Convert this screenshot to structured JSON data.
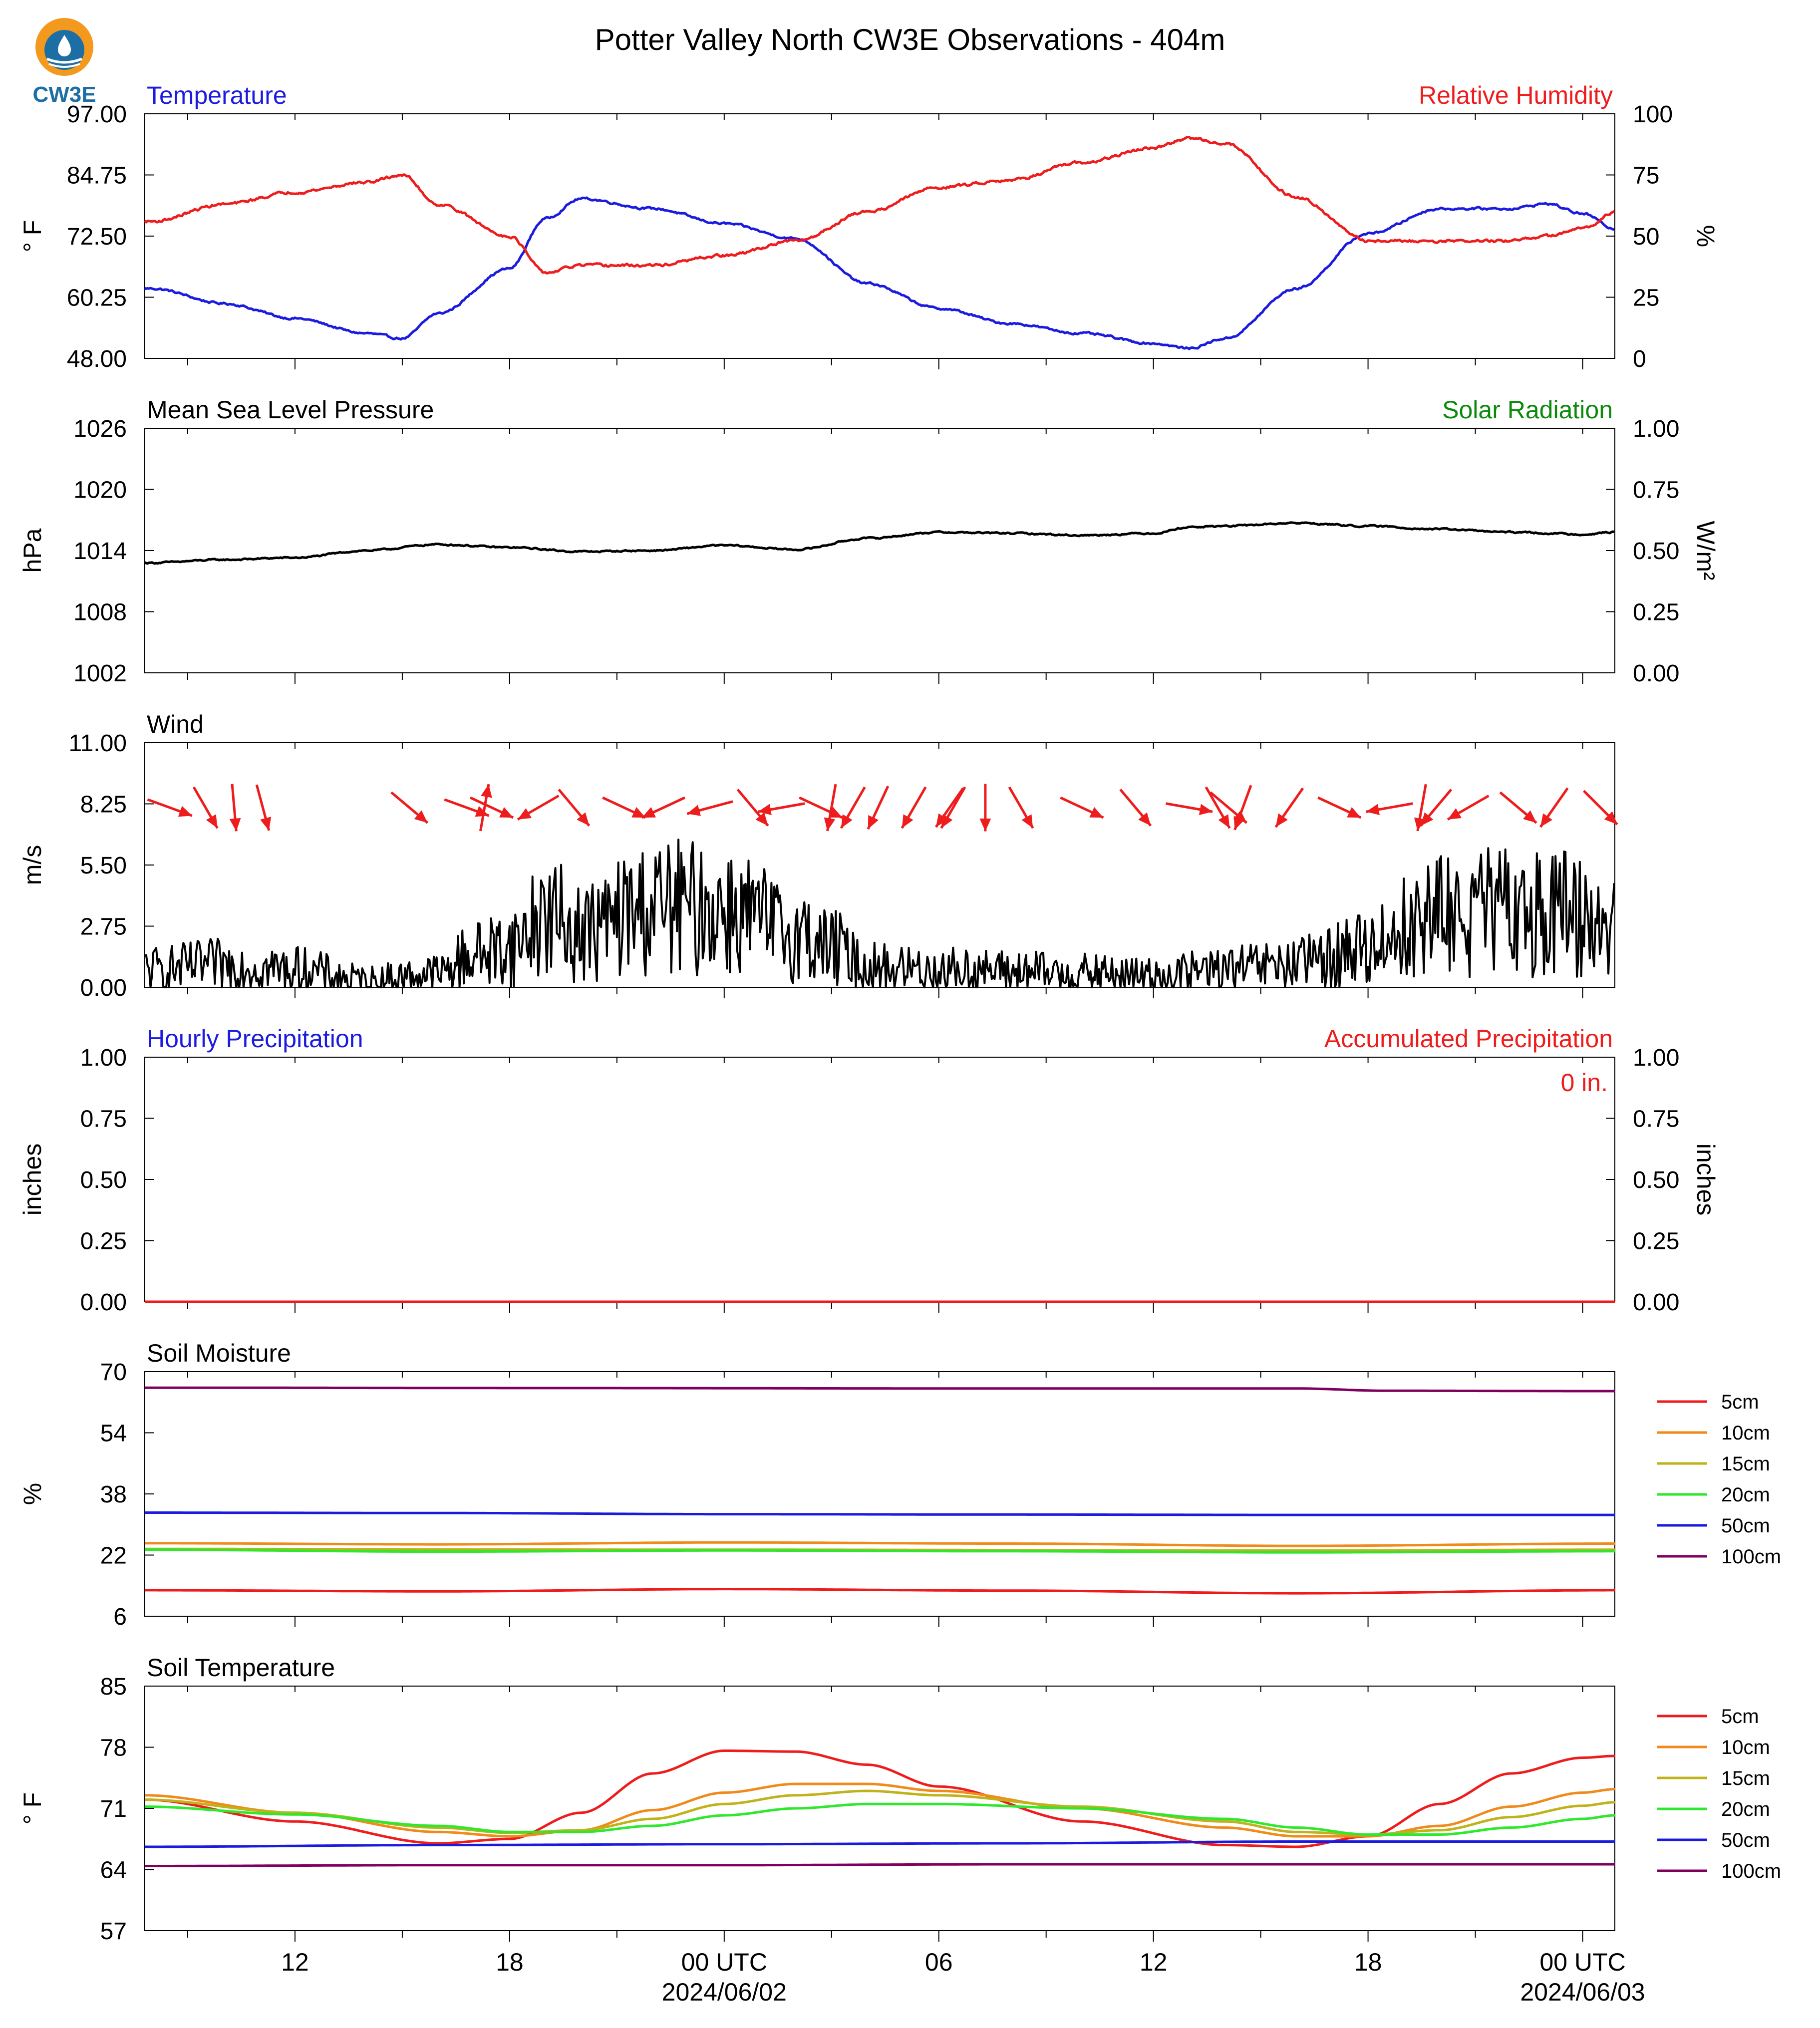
{
  "title": "Potter Valley North CW3E Observations - 404m",
  "logo": {
    "text": "CW3E"
  },
  "colors": {
    "red": "#ee1c1c",
    "blue": "#1b1be0",
    "green": "#0c8a0c",
    "black": "#000000",
    "soil_5cm": "#ee1c1c",
    "soil_10cm": "#f08a1a",
    "soil_15cm": "#bfb21a",
    "soil_20cm": "#2ee82e",
    "soil_50cm": "#1b1be0",
    "soil_100cm": "#800060"
  },
  "x_axis": {
    "ticks": [
      "12",
      "18",
      "00 UTC",
      "06",
      "12",
      "18",
      "00 UTC"
    ],
    "tick_hours": [
      12,
      18,
      24,
      30,
      36,
      42,
      48
    ],
    "date_labels": [
      "2024/06/02",
      "2024/06/03"
    ],
    "date_hours": [
      24,
      48
    ],
    "range_hours": [
      7.8,
      48.9
    ]
  },
  "chart_data": [
    {
      "type": "line",
      "panel": "temperature-humidity",
      "left_title": "Temperature",
      "right_title": "Relative Humidity",
      "ylabel": "° F",
      "ylabel2": "%",
      "ylim": [
        48,
        97
      ],
      "ylim2": [
        0,
        100
      ],
      "yticks": [
        "97.00",
        "84.75",
        "72.50",
        "60.25",
        "48.00"
      ],
      "yticks2": [
        "100",
        "75",
        "50",
        "25",
        "0"
      ],
      "series": [
        {
          "axis": "left",
          "color": "blue",
          "x": [
            8,
            10,
            12,
            14,
            15,
            16,
            18,
            19,
            20,
            22,
            24,
            26,
            28,
            30,
            32,
            34,
            36,
            37,
            38,
            40,
            42,
            44,
            46,
            47,
            48,
            48.9
          ],
          "values": [
            62,
            59,
            56,
            53,
            52,
            57,
            66,
            76,
            80,
            78,
            75,
            72,
            63,
            58,
            55,
            53,
            51,
            50,
            52,
            62,
            73,
            78,
            78,
            79,
            77,
            74
          ]
        },
        {
          "axis": "right",
          "color": "red",
          "x": [
            8,
            10,
            12,
            14,
            15,
            16,
            18,
            19,
            20,
            22,
            24,
            26,
            28,
            30,
            32,
            34,
            36,
            37,
            38,
            40,
            42,
            44,
            46,
            47,
            48,
            48.9
          ],
          "values": [
            56,
            63,
            68,
            72,
            75,
            63,
            50,
            35,
            38,
            38,
            42,
            48,
            60,
            70,
            73,
            80,
            86,
            90,
            88,
            66,
            48,
            48,
            48,
            50,
            53,
            60
          ]
        }
      ]
    },
    {
      "type": "line",
      "panel": "pressure-solar",
      "left_title": "Mean Sea Level Pressure",
      "right_title": "Solar Radiation",
      "ylabel": "hPa",
      "ylabel2": "W/m²",
      "ylim": [
        1002,
        1026
      ],
      "ylim2": [
        0,
        1
      ],
      "yticks": [
        "1026",
        "1020",
        "1014",
        "1008",
        "1002"
      ],
      "yticks2": [
        "1.00",
        "0.75",
        "0.50",
        "0.25",
        "0.00"
      ],
      "series": [
        {
          "axis": "left",
          "color": "black",
          "x": [
            8,
            10,
            12,
            14,
            16,
            18,
            20,
            22,
            24,
            26,
            28,
            30,
            32,
            34,
            36,
            37,
            38,
            40,
            42,
            44,
            46,
            48,
            48.9
          ],
          "values": [
            1012.8,
            1013.1,
            1013.3,
            1014.0,
            1014.6,
            1014.3,
            1013.9,
            1014.0,
            1014.5,
            1014.1,
            1015.2,
            1015.8,
            1015.7,
            1015.5,
            1015.7,
            1016.3,
            1016.4,
            1016.7,
            1016.4,
            1016.1,
            1015.8,
            1015.6,
            1015.8
          ]
        }
      ]
    },
    {
      "type": "line",
      "panel": "wind",
      "left_title": "Wind",
      "ylabel": "m/s",
      "ylim": [
        0,
        11
      ],
      "yticks": [
        "11.00",
        "8.25",
        "5.50",
        "2.75",
        "0.00"
      ],
      "series": [
        {
          "color": "black",
          "x": [
            8,
            10,
            12,
            14,
            16,
            17,
            18,
            19,
            20,
            22,
            24,
            26,
            27,
            28,
            30,
            32,
            34,
            36,
            38,
            40,
            41,
            42,
            43,
            44,
            46,
            48,
            48.9
          ],
          "values": [
            0.8,
            1.0,
            0.8,
            0.3,
            0.6,
            1.5,
            1.8,
            3.2,
            2.5,
            3.6,
            3.5,
            2.4,
            1.8,
            0.9,
            0.8,
            0.7,
            0.6,
            0.5,
            0.8,
            1.0,
            1.4,
            1.8,
            2.6,
            3.3,
            3.4,
            3.3,
            2.8
          ]
        }
      ],
      "arrows": {
        "color": "red",
        "hours": [
          8.5,
          9.5,
          10.3,
          11.1,
          15.2,
          16.8,
          17.3,
          17.5,
          18.8,
          19.8,
          21.2,
          22.3,
          23.6,
          24.8,
          25.6,
          26.7,
          27.0,
          27.6,
          28.3,
          29.3,
          30.3,
          30.4,
          31.3,
          32.3,
          34.0,
          35.5,
          37.0,
          37.8,
          38.1,
          38.5,
          39.8,
          41.2,
          42.6,
          43.5,
          43.9,
          44.8,
          46.2,
          47.2,
          48.5
        ],
        "directions_deg": [
          110,
          150,
          175,
          165,
          130,
          110,
          10,
          115,
          240,
          140,
          115,
          245,
          255,
          140,
          260,
          115,
          190,
          210,
          205,
          210,
          215,
          210,
          180,
          150,
          115,
          140,
          100,
          150,
          130,
          200,
          215,
          115,
          260,
          190,
          220,
          240,
          130,
          215,
          135
        ]
      }
    },
    {
      "type": "line",
      "panel": "precipitation",
      "left_title": "Hourly Precipitation",
      "right_title": "Accumulated Precipitation",
      "ylabel": "inches",
      "ylabel2": "inches",
      "annotation": "0 in.",
      "ylim": [
        0,
        1
      ],
      "ylim2": [
        0,
        1
      ],
      "yticks": [
        "1.00",
        "0.75",
        "0.50",
        "0.25",
        "0.00"
      ],
      "yticks2": [
        "1.00",
        "0.75",
        "0.50",
        "0.25",
        "0.00"
      ],
      "series": [
        {
          "axis": "left",
          "color": "blue",
          "x": [
            7.8,
            48.9
          ],
          "values": [
            0,
            0
          ]
        },
        {
          "axis": "right",
          "color": "red",
          "x": [
            7.8,
            48.9
          ],
          "values": [
            0,
            0
          ]
        }
      ]
    },
    {
      "type": "line",
      "panel": "soil-moisture",
      "left_title": "Soil Moisture",
      "ylabel": "%",
      "ylim": [
        6,
        70
      ],
      "yticks": [
        "70",
        "54",
        "38",
        "22",
        "6"
      ],
      "series": [
        {
          "name": "5cm",
          "color": "soil_5cm",
          "x": [
            7.8,
            16,
            24,
            32,
            40,
            48.9
          ],
          "values": [
            12.8,
            12.5,
            13.1,
            12.7,
            12.0,
            12.8
          ]
        },
        {
          "name": "10cm",
          "color": "soil_10cm",
          "x": [
            7.8,
            16,
            24,
            32,
            40,
            48.9
          ],
          "values": [
            25.1,
            24.8,
            25.3,
            25.0,
            24.4,
            25.0
          ]
        },
        {
          "name": "15cm",
          "color": "soil_15cm",
          "x": [
            7.8,
            24,
            40,
            48.9
          ],
          "values": [
            23.6,
            23.4,
            23.2,
            23.4
          ]
        },
        {
          "name": "20cm",
          "color": "soil_20cm",
          "x": [
            7.8,
            16,
            24,
            32,
            40,
            48.9
          ],
          "values": [
            23.4,
            22.9,
            23.2,
            23.0,
            22.7,
            23.0
          ]
        },
        {
          "name": "50cm",
          "color": "soil_50cm",
          "x": [
            7.8,
            16,
            24,
            32,
            40,
            48.9
          ],
          "values": [
            33.1,
            33.0,
            32.7,
            32.6,
            32.5,
            32.5
          ]
        },
        {
          "name": "100cm",
          "color": "soil_100cm",
          "x": [
            7.8,
            20,
            30,
            40,
            42.5,
            48.9
          ],
          "values": [
            65.8,
            65.7,
            65.6,
            65.6,
            65.0,
            64.9
          ]
        }
      ],
      "legend": [
        "5cm",
        "10cm",
        "15cm",
        "20cm",
        "50cm",
        "100cm"
      ]
    },
    {
      "type": "line",
      "panel": "soil-temperature",
      "left_title": "Soil Temperature",
      "ylabel": "° F",
      "ylim": [
        57,
        85
      ],
      "yticks": [
        "85",
        "78",
        "71",
        "64",
        "57"
      ],
      "series": [
        {
          "name": "5cm",
          "color": "soil_5cm",
          "x": [
            7.8,
            12,
            16,
            18,
            20,
            22,
            24,
            26,
            28,
            30,
            34,
            38,
            40,
            42,
            44,
            46,
            48,
            48.9
          ],
          "values": [
            72.0,
            69.5,
            67.0,
            67.5,
            70.5,
            75.0,
            77.6,
            77.5,
            76.0,
            73.5,
            69.5,
            66.8,
            66.6,
            67.8,
            71.5,
            75.0,
            76.8,
            77.0
          ]
        },
        {
          "name": "10cm",
          "color": "soil_10cm",
          "x": [
            7.8,
            12,
            16,
            18,
            20,
            22,
            24,
            26,
            28,
            30,
            34,
            38,
            40,
            42,
            44,
            46,
            48,
            48.9
          ],
          "values": [
            72.5,
            70.5,
            68.3,
            67.8,
            68.5,
            70.8,
            72.8,
            73.8,
            73.8,
            73.0,
            71.0,
            68.8,
            67.8,
            67.8,
            69.0,
            71.2,
            72.8,
            73.2
          ]
        },
        {
          "name": "15cm",
          "color": "soil_15cm",
          "x": [
            7.8,
            12,
            16,
            18,
            20,
            22,
            24,
            26,
            28,
            30,
            34,
            38,
            40,
            42,
            44,
            46,
            48,
            48.9
          ],
          "values": [
            72.0,
            70.5,
            68.8,
            68.2,
            68.5,
            69.8,
            71.5,
            72.5,
            73.0,
            72.5,
            71.2,
            69.5,
            68.3,
            68.0,
            68.5,
            70.0,
            71.3,
            71.7
          ]
        },
        {
          "name": "20cm",
          "color": "soil_20cm",
          "x": [
            7.8,
            12,
            16,
            18,
            20,
            22,
            24,
            26,
            28,
            30,
            34,
            38,
            40,
            42,
            44,
            46,
            48,
            48.9
          ],
          "values": [
            71.2,
            70.3,
            69.0,
            68.3,
            68.3,
            69.0,
            70.2,
            71.0,
            71.5,
            71.5,
            71.0,
            69.8,
            68.8,
            68.0,
            68.0,
            68.8,
            69.8,
            70.2
          ]
        },
        {
          "name": "50cm",
          "color": "soil_50cm",
          "x": [
            7.8,
            16,
            24,
            32,
            40,
            48.9
          ],
          "values": [
            66.6,
            66.8,
            66.9,
            67.0,
            67.2,
            67.2
          ]
        },
        {
          "name": "100cm",
          "color": "soil_100cm",
          "x": [
            7.8,
            16,
            24,
            32,
            40,
            48.9
          ],
          "values": [
            64.4,
            64.5,
            64.5,
            64.6,
            64.6,
            64.6
          ]
        }
      ],
      "legend": [
        "5cm",
        "10cm",
        "15cm",
        "20cm",
        "50cm",
        "100cm"
      ]
    }
  ]
}
